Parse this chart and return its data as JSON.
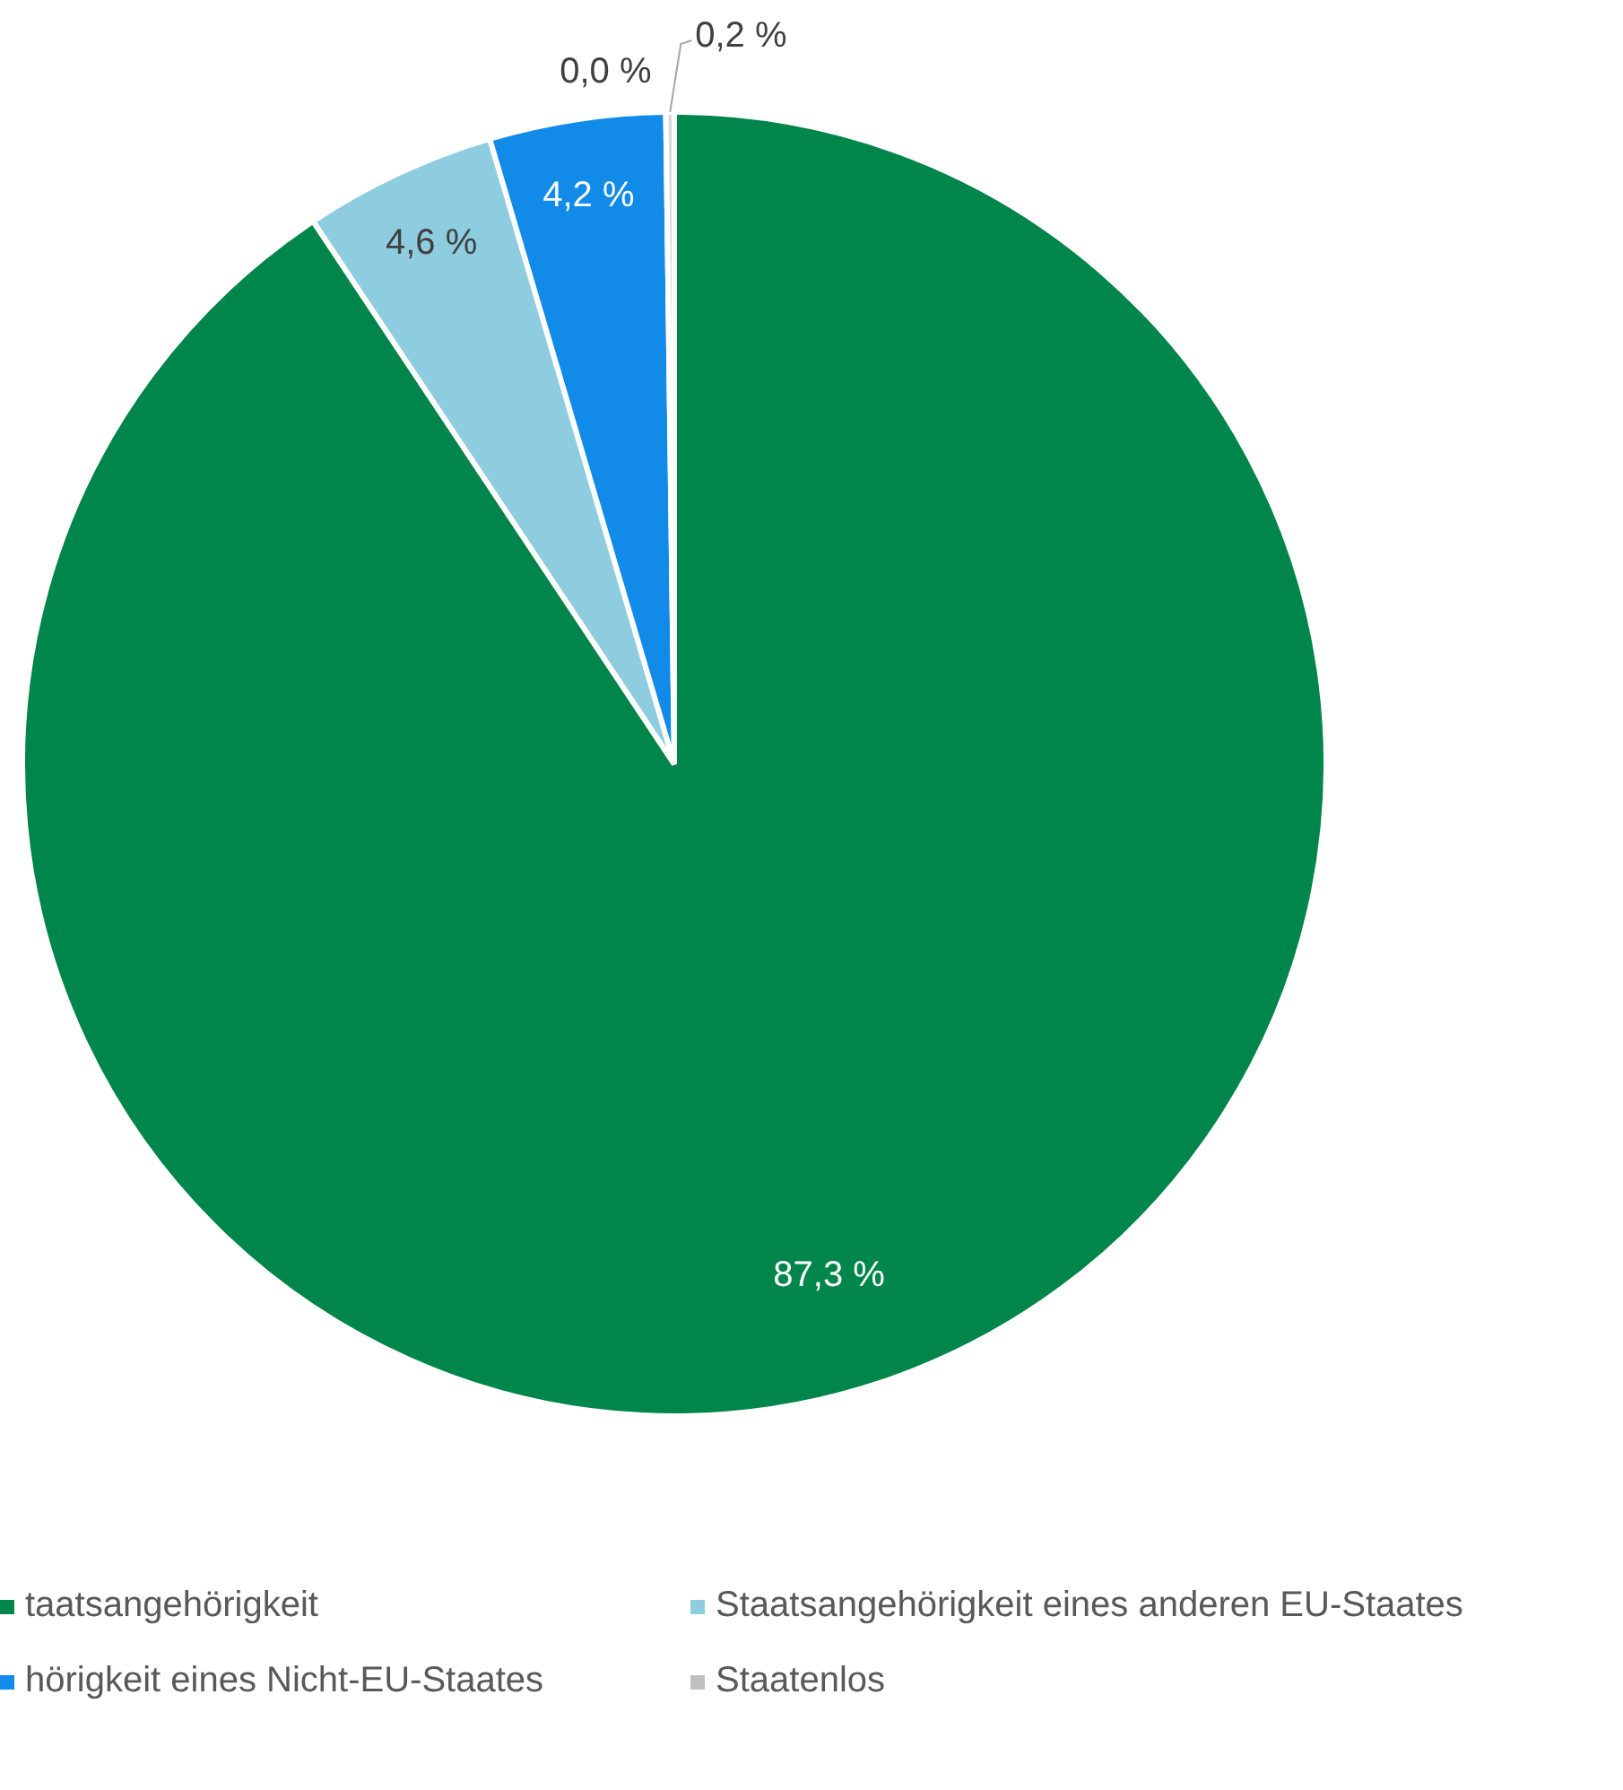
{
  "chart_data": {
    "type": "pie",
    "categories": [
      "taatsangehörigkeit",
      "Staatsangehörigkeit eines anderen EU-Staates",
      "hörigkeit eines Nicht-EU-Staates",
      "Staatenlos",
      null
    ],
    "values": [
      87.3,
      4.6,
      4.2,
      0.0,
      0.2
    ],
    "colors": [
      "#00854a",
      "#8ecde0",
      "#118ae8",
      "#bfbfbf",
      "#d9d9d9"
    ],
    "value_labels": [
      "87,3 %",
      "4,6 %",
      "4,2 %",
      "0,0 %",
      "0,2 %"
    ],
    "legend": "bottom"
  }
}
